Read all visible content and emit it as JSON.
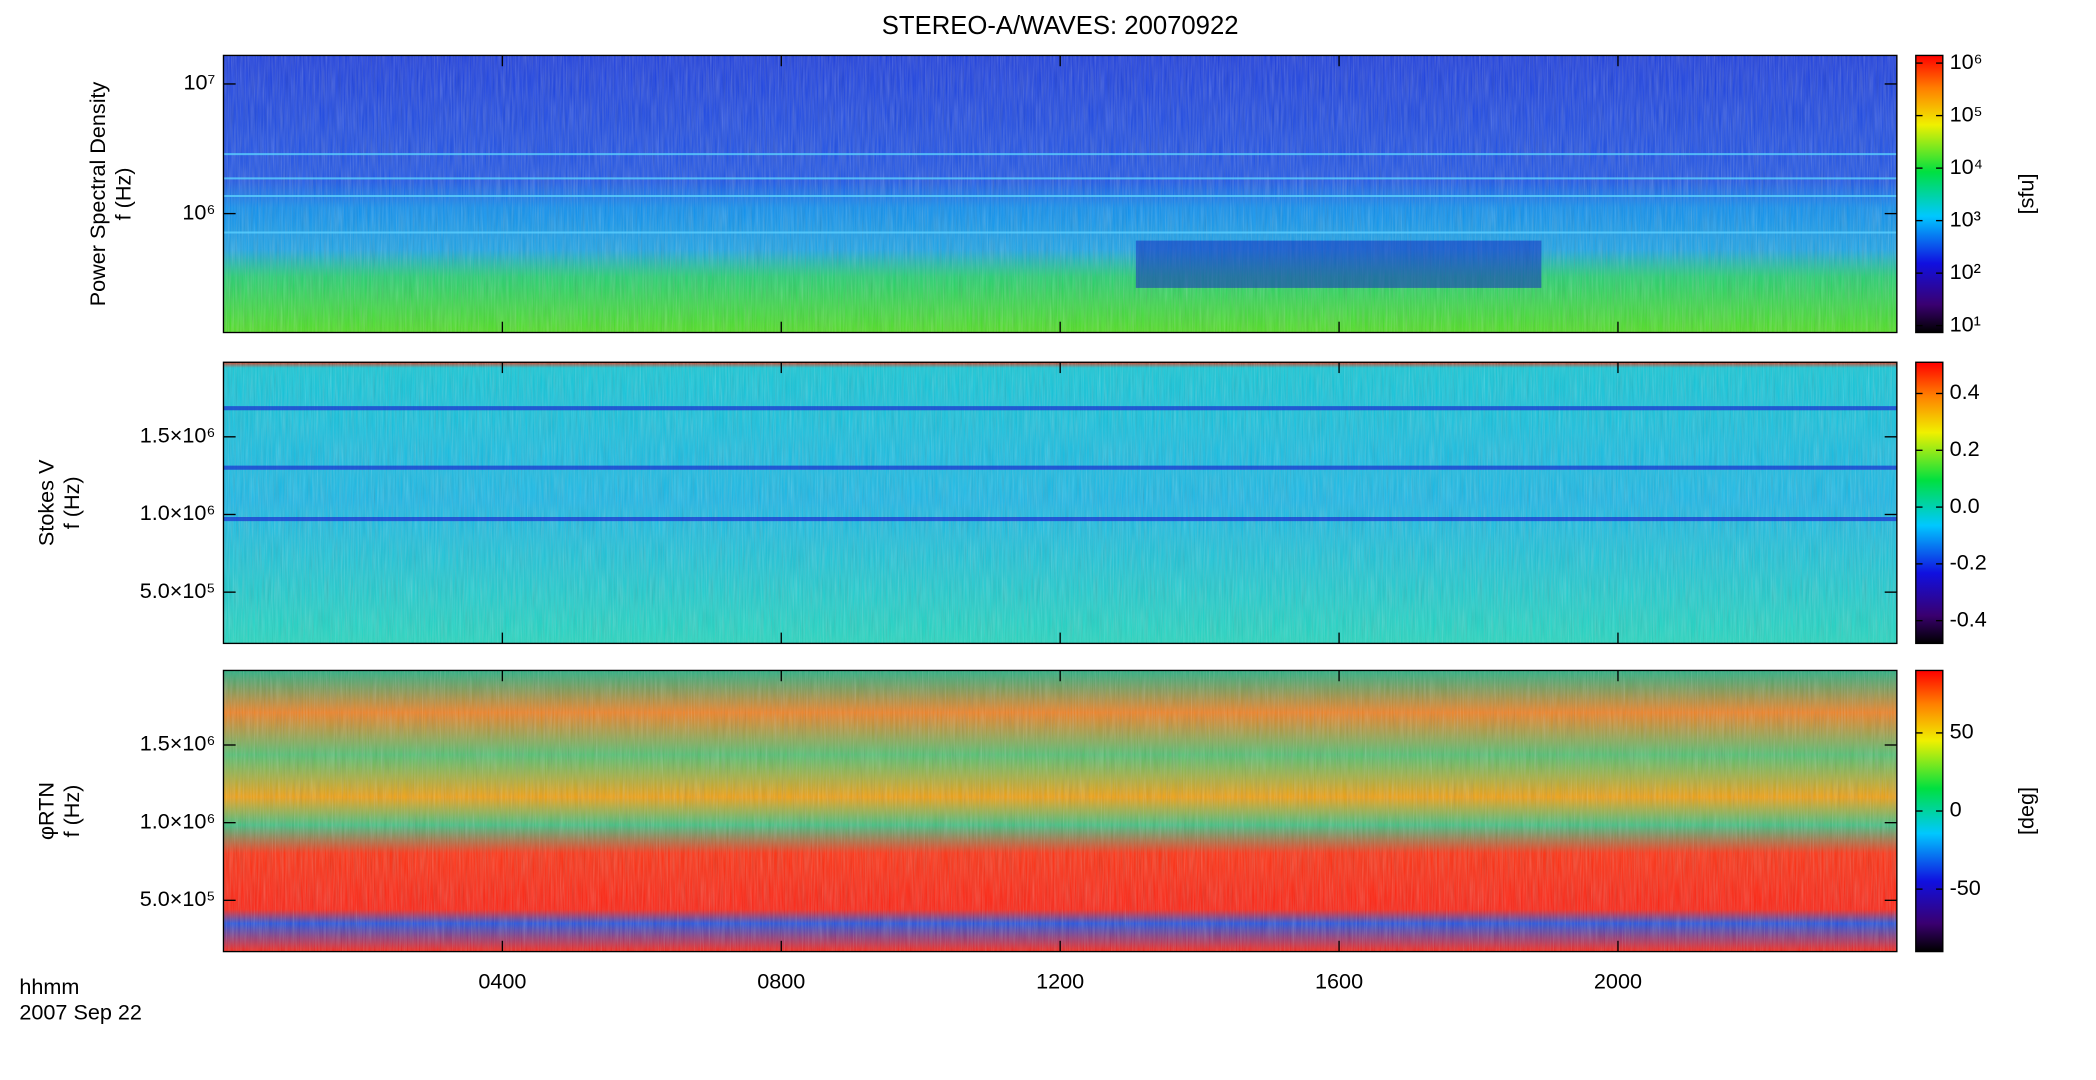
{
  "title": "STEREO-A/WAVES: 20070922",
  "x_axis": {
    "lim": [
      0,
      24
    ],
    "ticks": [
      {
        "value": 4,
        "label": "0400"
      },
      {
        "value": 8,
        "label": "0800"
      },
      {
        "value": 12,
        "label": "1200"
      },
      {
        "value": 16,
        "label": "1600"
      },
      {
        "value": 20,
        "label": "2000"
      }
    ],
    "label": "hhmm",
    "date": "2007 Sep 22"
  },
  "chart_data": [
    {
      "type": "spectrogram",
      "ylabel": [
        "Power Spectral Density",
        "f (Hz)"
      ],
      "yscale": "log",
      "ylim": [
        121000,
        16600000
      ],
      "yticks": [
        {
          "value": 1000000,
          "label": "10⁶"
        },
        {
          "value": 10000000,
          "label": "10⁷"
        }
      ],
      "colorbar": {
        "label": "[sfu]",
        "scale": "log",
        "lim": [
          7.4,
          1400000
        ],
        "ticks": [
          {
            "value": 10,
            "label": "10¹"
          },
          {
            "value": 100,
            "label": "10²"
          },
          {
            "value": 1000,
            "label": "10³"
          },
          {
            "value": 10000,
            "label": "10⁴"
          },
          {
            "value": 100000,
            "label": "10⁵"
          },
          {
            "value": 1000000,
            "label": "10⁶"
          }
        ]
      }
    },
    {
      "type": "spectrogram",
      "ylabel": [
        "Stokes V",
        "f (Hz)"
      ],
      "yscale": "linear",
      "ylim": [
        170000,
        1980000
      ],
      "yticks": [
        {
          "value": 500000,
          "label": "5.0×10⁵"
        },
        {
          "value": 1000000,
          "label": "1.0×10⁶"
        },
        {
          "value": 1500000,
          "label": "1.5×10⁶"
        }
      ],
      "colorbar": {
        "scale": "linear",
        "lim": [
          -0.48,
          0.51
        ],
        "ticks": [
          -0.4,
          -0.2,
          {
            "value": 0,
            "label": "0.0"
          },
          0.2,
          0.4
        ]
      }
    },
    {
      "type": "spectrogram",
      "ylabel": [
        "φRTN",
        "f (Hz)"
      ],
      "yscale": "linear",
      "ylim": [
        170000,
        1980000
      ],
      "yticks": [
        {
          "value": 500000,
          "label": "5.0×10⁵"
        },
        {
          "value": 1000000,
          "label": "1.0×10⁶"
        },
        {
          "value": 1500000,
          "label": "1.5×10⁶"
        }
      ],
      "colorbar": {
        "label": "[deg]",
        "scale": "linear",
        "lim": [
          -90,
          90
        ],
        "ticks": [
          -50,
          0,
          50
        ]
      }
    }
  ]
}
